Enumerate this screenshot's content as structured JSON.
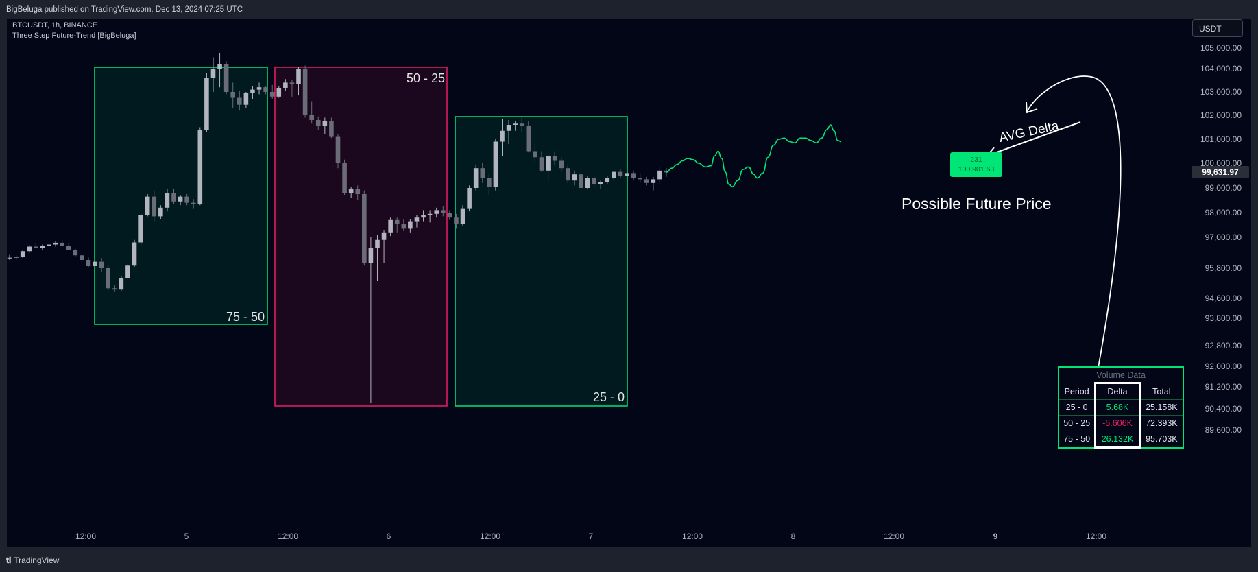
{
  "header": {
    "published": "BigBeluga published on TradingView.com, Dec 13, 2024 07:25 UTC"
  },
  "legend": {
    "symbol": "BTCUSDT, 1h, BINANCE",
    "indicator": "Three Step Future-Trend [BigBeluga]"
  },
  "currency_button": "USDT",
  "footer": {
    "brand": "TradingView",
    "logo_icon": "tradingview-logo-icon"
  },
  "colors": {
    "background": "#020616",
    "bull_box": "#00e676",
    "bear_box": "#e91e63",
    "candles": "#787b86"
  },
  "annotations": {
    "future_price_label": "Possible Future Price",
    "avg_delta_label": "AVG Delta",
    "tag_line1": "231",
    "tag_line2": "100,901.63",
    "arrow_icon": "up-arrow-icon"
  },
  "volume_table": {
    "title": "Volume Data",
    "headers": [
      "Period",
      "Delta",
      "Total"
    ],
    "rows": [
      {
        "period": "25 - 0",
        "delta": "5.68K",
        "total": "25.158K"
      },
      {
        "period": "50 - 25",
        "delta": "-6.606K",
        "total": "72.393K"
      },
      {
        "period": "75 - 50",
        "delta": "26.132K",
        "total": "95.703K"
      }
    ]
  },
  "chart_data": {
    "type": "line",
    "title": "BTCUSDT, 1h, BINANCE",
    "y_ticks": [
      "105,000.00",
      "104,000.00",
      "103,000.00",
      "102,000.00",
      "101,000.00",
      "100,000.00",
      "99,000.00",
      "98,000.00",
      "97,000.00",
      "95,800.00",
      "94,600.00",
      "93,800.00",
      "92,800.00",
      "92,000.00",
      "91,200.00",
      "90,400.00",
      "89,600.00"
    ],
    "x_ticks": [
      "12:00",
      "5",
      "12:00",
      "6",
      "12:00",
      "7",
      "12:00",
      "8",
      "12:00",
      "9",
      "12:00"
    ],
    "last_price": "99,631.97",
    "periods": [
      {
        "label": "75 - 50",
        "direction": "bull"
      },
      {
        "label": "50 - 25",
        "direction": "bear"
      },
      {
        "label": "25 - 0",
        "direction": "bull"
      }
    ],
    "candles": [
      [
        96180,
        96320,
        96120,
        96210
      ],
      [
        96210,
        96300,
        96100,
        96240
      ],
      [
        96240,
        96500,
        96200,
        96460
      ],
      [
        96460,
        96700,
        96400,
        96640
      ],
      [
        96640,
        96760,
        96560,
        96580
      ],
      [
        96580,
        96720,
        96520,
        96680
      ],
      [
        96680,
        96780,
        96600,
        96720
      ],
      [
        96720,
        96860,
        96640,
        96790
      ],
      [
        96790,
        96900,
        96650,
        96680
      ],
      [
        96680,
        96760,
        96500,
        96520
      ],
      [
        96520,
        96560,
        96250,
        96300
      ],
      [
        96300,
        96380,
        96050,
        96120
      ],
      [
        96120,
        96220,
        95820,
        95880
      ],
      [
        95880,
        96120,
        95700,
        96050
      ],
      [
        96050,
        96200,
        95650,
        95800
      ],
      [
        95800,
        95900,
        94900,
        95000
      ],
      [
        95000,
        95120,
        94850,
        94950
      ],
      [
        94950,
        95480,
        94900,
        95400
      ],
      [
        95400,
        95980,
        95350,
        95900
      ],
      [
        95900,
        96900,
        95850,
        96800
      ],
      [
        96800,
        98000,
        96700,
        97900
      ],
      [
        97900,
        98750,
        97850,
        98650
      ],
      [
        98650,
        98900,
        97650,
        97850
      ],
      [
        97850,
        98300,
        97750,
        98200
      ],
      [
        98200,
        98950,
        98050,
        98800
      ],
      [
        98800,
        98950,
        98350,
        98450
      ],
      [
        98450,
        98700,
        98300,
        98650
      ],
      [
        98650,
        98750,
        98300,
        98400
      ],
      [
        98400,
        98550,
        98150,
        98350
      ],
      [
        98350,
        101500,
        98300,
        101400
      ],
      [
        101400,
        103800,
        101300,
        103600
      ],
      [
        103600,
        104550,
        103000,
        104000
      ],
      [
        104000,
        104750,
        103200,
        104200
      ],
      [
        104200,
        104350,
        102900,
        103000
      ],
      [
        103000,
        103400,
        102300,
        102750
      ],
      [
        102750,
        103050,
        102200,
        102450
      ],
      [
        102450,
        103000,
        102300,
        102950
      ],
      [
        102950,
        103250,
        102700,
        103100
      ],
      [
        103100,
        103400,
        102900,
        103200
      ],
      [
        103200,
        103250,
        102900,
        103000
      ],
      [
        103000,
        103300,
        102700,
        102800
      ],
      [
        102800,
        103250,
        102750,
        103150
      ],
      [
        103150,
        103550,
        103050,
        103400
      ],
      [
        103400,
        103500,
        102800,
        103350
      ],
      [
        103350,
        104100,
        102850,
        104000
      ],
      [
        104000,
        104150,
        101900,
        102000
      ],
      [
        102000,
        102600,
        101650,
        101800
      ],
      [
        101800,
        101950,
        101400,
        101550
      ],
      [
        101550,
        101900,
        101200,
        101750
      ],
      [
        101750,
        101900,
        101050,
        101100
      ],
      [
        101100,
        101200,
        99800,
        100000
      ],
      [
        100000,
        100150,
        98700,
        98800
      ],
      [
        98800,
        99050,
        98600,
        98950
      ],
      [
        98950,
        99100,
        98500,
        98750
      ],
      [
        98750,
        98900,
        95900,
        96000
      ],
      [
        96000,
        97000,
        90600,
        96600
      ],
      [
        96600,
        97100,
        95300,
        96900
      ],
      [
        96900,
        97300,
        96000,
        97200
      ],
      [
        97200,
        97800,
        97050,
        97700
      ],
      [
        97700,
        97800,
        97200,
        97550
      ],
      [
        97550,
        97750,
        97250,
        97350
      ],
      [
        97350,
        97750,
        97200,
        97650
      ],
      [
        97650,
        97900,
        97400,
        97800
      ],
      [
        97800,
        98100,
        97650,
        97900
      ],
      [
        97900,
        98100,
        97600,
        97950
      ],
      [
        97950,
        98200,
        97800,
        98100
      ],
      [
        98100,
        98250,
        97850,
        98000
      ],
      [
        98000,
        98100,
        97700,
        97800
      ],
      [
        97800,
        97950,
        97350,
        97550
      ],
      [
        97550,
        98300,
        97450,
        98150
      ],
      [
        98150,
        99100,
        98050,
        99000
      ],
      [
        99000,
        99950,
        98900,
        99800
      ],
      [
        99800,
        100000,
        99200,
        99400
      ],
      [
        99400,
        99550,
        98700,
        99050
      ],
      [
        99050,
        101000,
        98900,
        100900
      ],
      [
        100900,
        101850,
        100300,
        101350
      ],
      [
        101350,
        101800,
        100800,
        101600
      ],
      [
        101600,
        101750,
        101350,
        101650
      ],
      [
        101650,
        101900,
        101300,
        101550
      ],
      [
        101550,
        101750,
        100450,
        100500
      ],
      [
        100500,
        100800,
        100050,
        100250
      ],
      [
        100250,
        100500,
        99650,
        99700
      ],
      [
        99700,
        100400,
        99250,
        100300
      ],
      [
        100300,
        100500,
        99900,
        100100
      ],
      [
        100100,
        100250,
        99650,
        99800
      ],
      [
        99800,
        99950,
        99200,
        99300
      ],
      [
        99300,
        99700,
        99100,
        99550
      ],
      [
        99550,
        99650,
        98900,
        99000
      ],
      [
        99000,
        99500,
        98950,
        99400
      ],
      [
        99400,
        99500,
        99050,
        99150
      ],
      [
        99150,
        99300,
        98950,
        99250
      ],
      [
        99250,
        99500,
        99150,
        99400
      ],
      [
        99400,
        99700,
        99300,
        99650
      ],
      [
        99650,
        99750,
        99400,
        99500
      ],
      [
        99500,
        99650,
        99350,
        99600
      ],
      [
        99600,
        99700,
        99300,
        99400
      ],
      [
        99400,
        99600,
        99200,
        99350
      ],
      [
        99350,
        99450,
        99100,
        99200
      ],
      [
        99200,
        99450,
        98900,
        99350
      ],
      [
        99350,
        99850,
        99150,
        99700
      ],
      [
        99700,
        99800,
        99450,
        99631.97
      ]
    ],
    "forecast": [
      [
        0,
        99632
      ],
      [
        3,
        99800
      ],
      [
        6,
        99950
      ],
      [
        9,
        100100
      ],
      [
        12,
        100200
      ],
      [
        15,
        100150
      ],
      [
        18,
        100000
      ],
      [
        22,
        99850
      ],
      [
        25,
        99900
      ],
      [
        27,
        100300
      ],
      [
        29,
        100500
      ],
      [
        31,
        100200
      ],
      [
        33,
        99650
      ],
      [
        35,
        99150
      ],
      [
        37,
        99050
      ],
      [
        40,
        99300
      ],
      [
        43,
        99750
      ],
      [
        46,
        99850
      ],
      [
        49,
        99550
      ],
      [
        51,
        99400
      ],
      [
        54,
        99600
      ],
      [
        57,
        100250
      ],
      [
        60,
        100750
      ],
      [
        63,
        101000
      ],
      [
        66,
        101050
      ],
      [
        69,
        100900
      ],
      [
        72,
        100850
      ],
      [
        75,
        101050
      ],
      [
        78,
        101050
      ],
      [
        81,
        100950
      ],
      [
        84,
        100850
      ],
      [
        87,
        101050
      ],
      [
        90,
        101400
      ],
      [
        92,
        101600
      ],
      [
        94,
        101350
      ],
      [
        96,
        100950
      ],
      [
        98,
        100901.63
      ]
    ]
  }
}
